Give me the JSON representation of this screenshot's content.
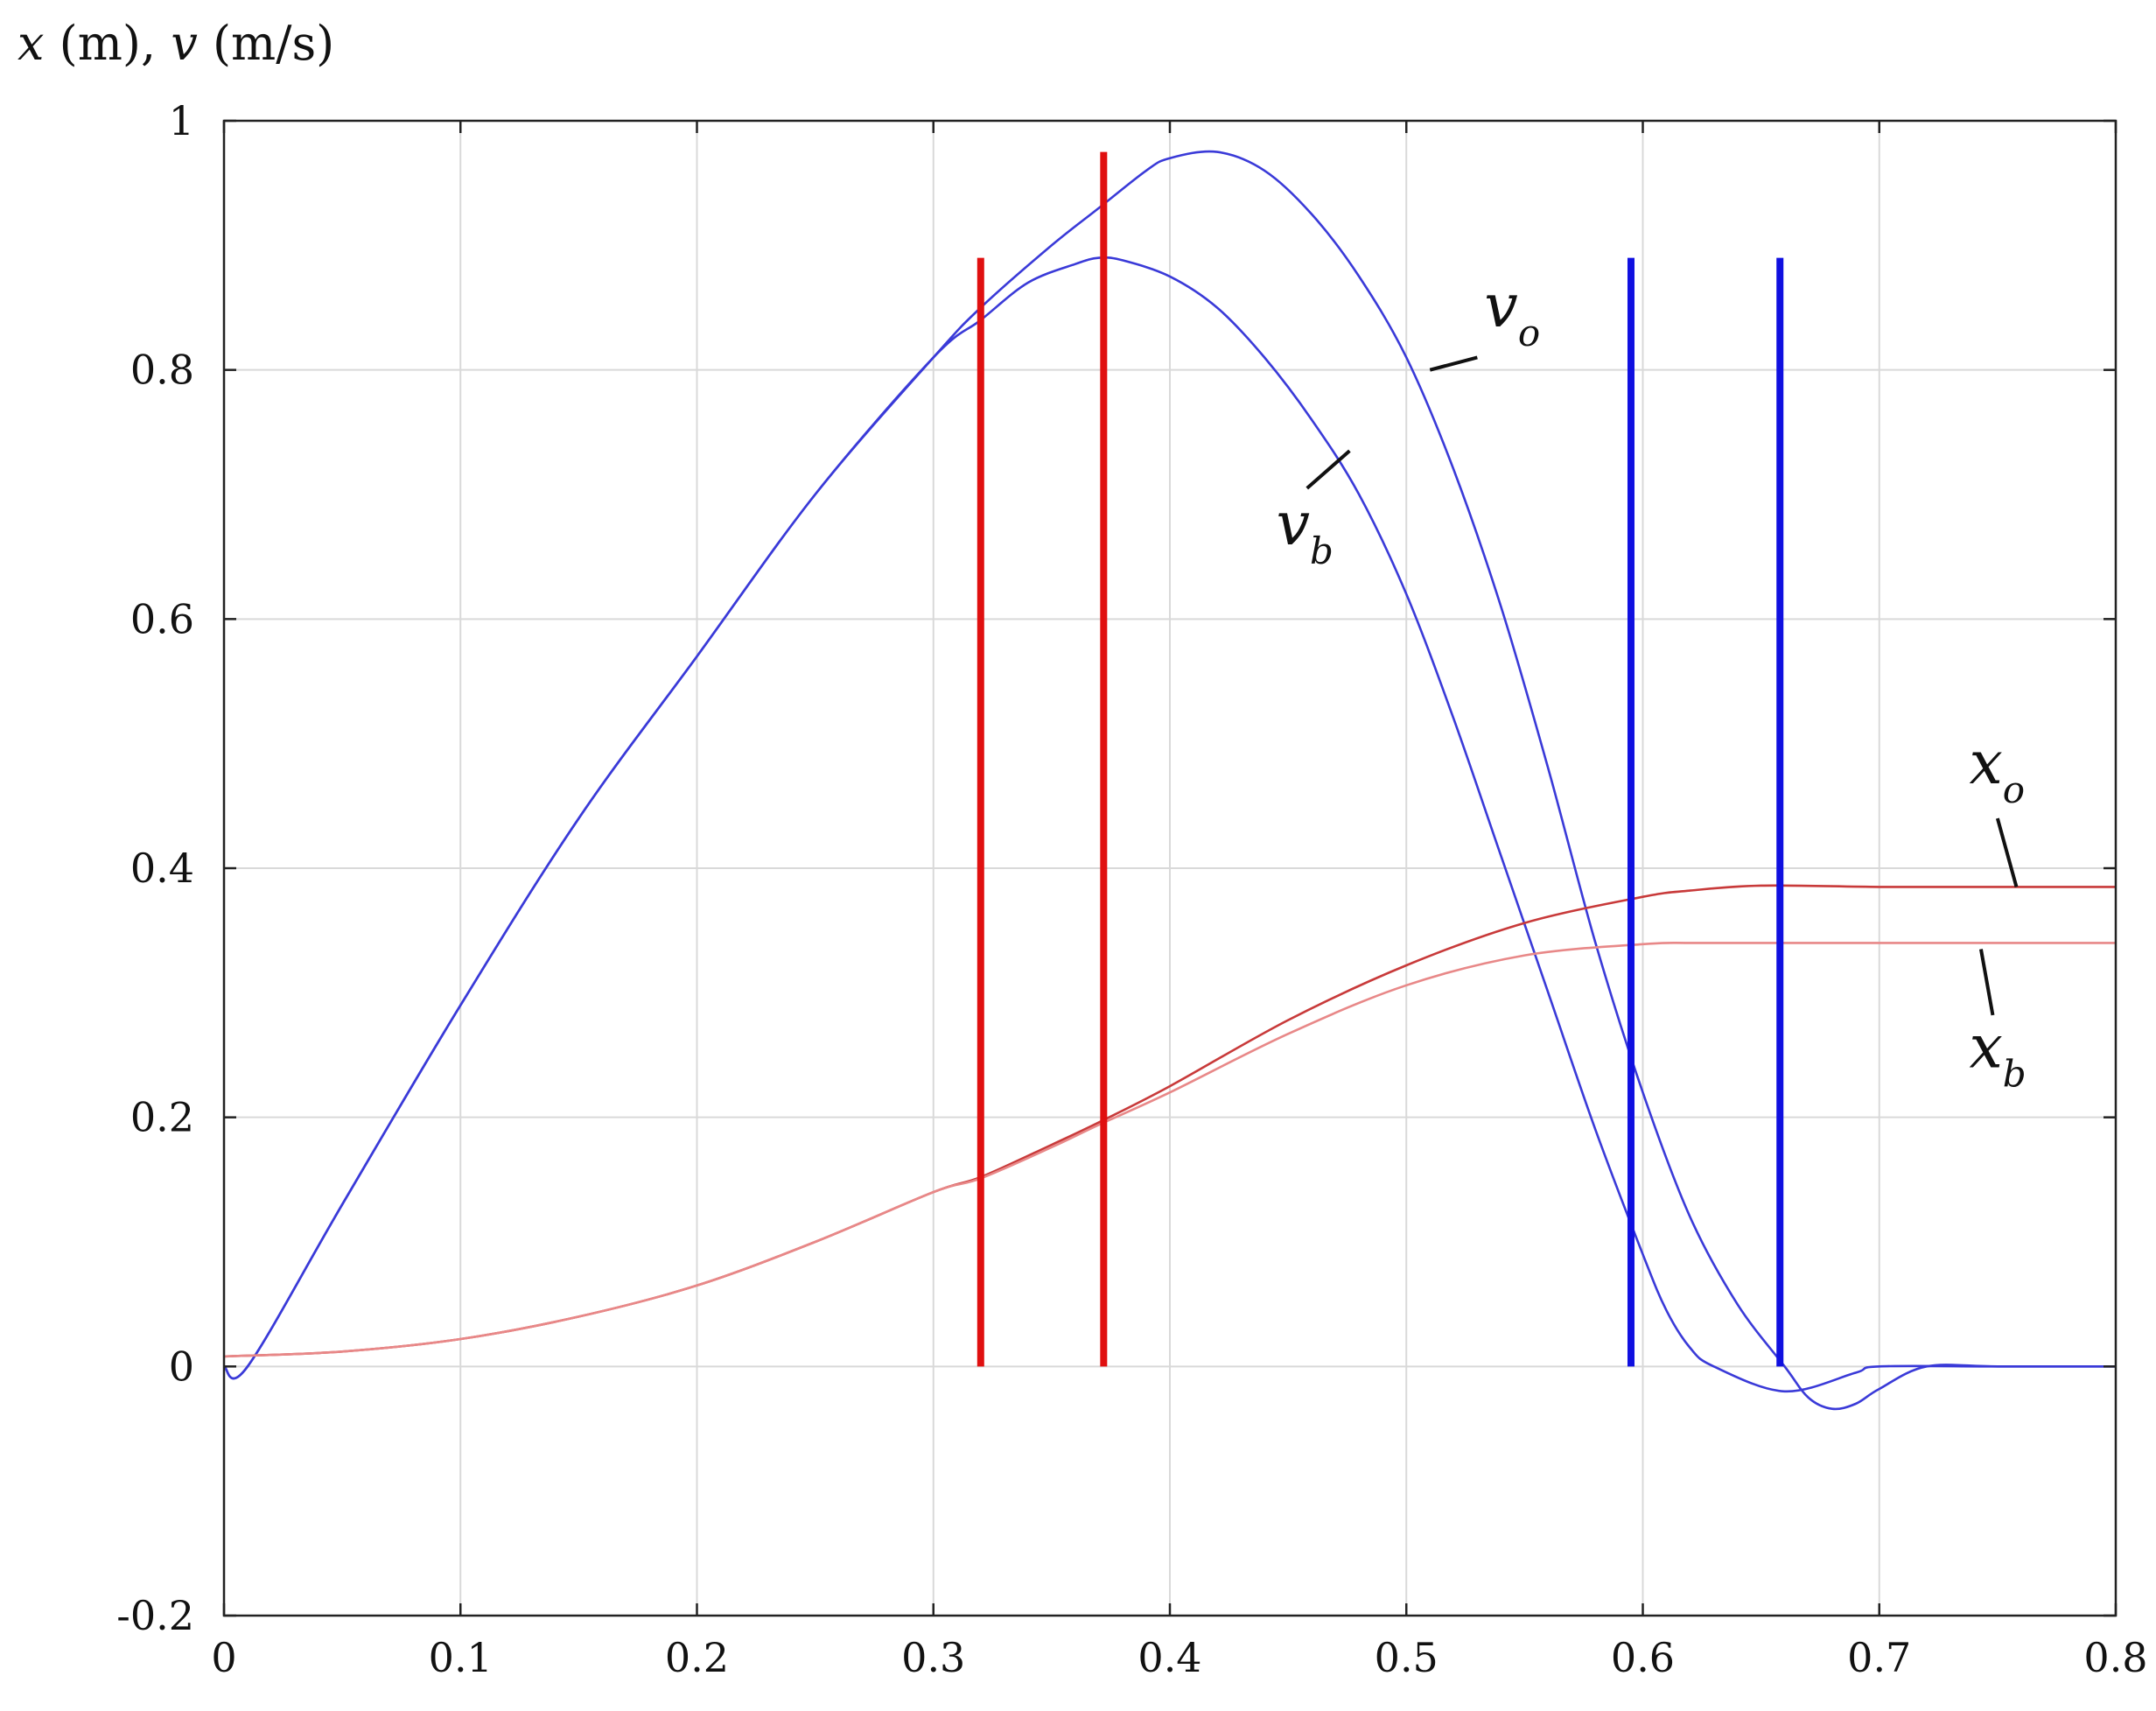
{
  "chart_data": {
    "type": "line",
    "title": "",
    "ylabel": {
      "x": "x",
      "x_unit": " (m), ",
      "v": "v",
      "v_unit": " (m/s)"
    },
    "xlabel": "",
    "xlim": [
      0,
      0.8
    ],
    "ylim": [
      -0.2,
      1.0
    ],
    "grid": true,
    "xticks": [
      0,
      0.1,
      0.2,
      0.3,
      0.4,
      0.5,
      0.6,
      0.7,
      0.8
    ],
    "xtick_labels": [
      "0",
      "0.1",
      "0.2",
      "0.3",
      "0.4",
      "0.5",
      "0.6",
      "0.7",
      "0.8"
    ],
    "yticks": [
      -0.2,
      0,
      0.2,
      0.4,
      0.6,
      0.8,
      1.0
    ],
    "ytick_labels": [
      "-0.2",
      "0",
      "0.2",
      "0.4",
      "0.6",
      "0.8",
      "1"
    ],
    "colors": {
      "velocity": "#3a3ad8",
      "position_o": "#c83a3a",
      "position_b": "#e88888",
      "red_marker": "#e01010",
      "blue_marker": "#1010e0"
    },
    "series": [
      {
        "name": "v_o",
        "color": "#3a3ad8",
        "x": [
          0,
          0.01,
          0.05,
          0.1,
          0.15,
          0.2,
          0.25,
          0.3,
          0.32,
          0.35,
          0.37,
          0.39,
          0.4,
          0.42,
          0.44,
          0.46,
          0.48,
          0.5,
          0.52,
          0.54,
          0.56,
          0.58,
          0.6,
          0.62,
          0.64,
          0.66,
          0.67,
          0.68,
          0.69,
          0.7,
          0.72,
          0.75,
          0.8
        ],
        "y": [
          0,
          0,
          0.13,
          0.29,
          0.44,
          0.57,
          0.7,
          0.81,
          0.85,
          0.9,
          0.93,
          0.96,
          0.97,
          0.975,
          0.96,
          0.925,
          0.875,
          0.81,
          0.72,
          0.61,
          0.48,
          0.34,
          0.22,
          0.12,
          0.05,
          0.0,
          -0.025,
          -0.034,
          -0.03,
          -0.018,
          0,
          0,
          0
        ]
      },
      {
        "name": "v_b",
        "color": "#3a3ad8",
        "x": [
          0,
          0.01,
          0.05,
          0.1,
          0.15,
          0.2,
          0.25,
          0.3,
          0.32,
          0.34,
          0.36,
          0.37,
          0.38,
          0.4,
          0.42,
          0.44,
          0.46,
          0.48,
          0.5,
          0.52,
          0.54,
          0.56,
          0.58,
          0.6,
          0.61,
          0.62,
          0.63,
          0.66,
          0.69,
          0.7,
          0.75,
          0.8
        ],
        "y": [
          0,
          0,
          0.13,
          0.29,
          0.44,
          0.57,
          0.7,
          0.81,
          0.84,
          0.87,
          0.885,
          0.89,
          0.888,
          0.875,
          0.85,
          0.81,
          0.76,
          0.7,
          0.62,
          0.52,
          0.41,
          0.3,
          0.19,
          0.09,
          0.045,
          0.015,
          0.0,
          -0.02,
          -0.005,
          0,
          0,
          0
        ]
      },
      {
        "name": "x_o",
        "color": "#c83a3a",
        "x": [
          0,
          0.05,
          0.1,
          0.15,
          0.2,
          0.25,
          0.3,
          0.32,
          0.35,
          0.37,
          0.4,
          0.45,
          0.5,
          0.55,
          0.6,
          0.62,
          0.65,
          0.7,
          0.75,
          0.8
        ],
        "y": [
          0.008,
          0.012,
          0.022,
          0.04,
          0.065,
          0.1,
          0.14,
          0.152,
          0.178,
          0.196,
          0.225,
          0.278,
          0.322,
          0.356,
          0.377,
          0.382,
          0.386,
          0.385,
          0.385,
          0.385
        ]
      },
      {
        "name": "x_b",
        "color": "#e88888",
        "x": [
          0,
          0.05,
          0.1,
          0.15,
          0.2,
          0.25,
          0.3,
          0.32,
          0.35,
          0.37,
          0.4,
          0.45,
          0.5,
          0.55,
          0.6,
          0.62,
          0.65,
          0.7,
          0.75,
          0.8
        ],
        "y": [
          0.008,
          0.012,
          0.022,
          0.04,
          0.065,
          0.1,
          0.14,
          0.151,
          0.176,
          0.194,
          0.22,
          0.267,
          0.306,
          0.33,
          0.339,
          0.34,
          0.34,
          0.34,
          0.34,
          0.34
        ]
      }
    ],
    "markers": [
      {
        "name": "red-marker-1",
        "x": 0.32,
        "y0": 0,
        "y1": 0.89,
        "color": "#e01010"
      },
      {
        "name": "red-marker-2",
        "x": 0.372,
        "y0": 0,
        "y1": 0.975,
        "color": "#e01010"
      },
      {
        "name": "blue-marker-1",
        "x": 0.595,
        "y0": 0,
        "y1": 0.89,
        "color": "#1010e0"
      },
      {
        "name": "blue-marker-2",
        "x": 0.658,
        "y0": 0,
        "y1": 0.89,
        "color": "#1010e0"
      }
    ],
    "annotations": [
      {
        "name": "label-v-o",
        "main": "v",
        "sub": "o",
        "text_x": 0.533,
        "text_y": 0.835,
        "line": [
          [
            0.53,
            0.81
          ],
          [
            0.51,
            0.8
          ]
        ]
      },
      {
        "name": "label-v-b",
        "main": "v",
        "sub": "b",
        "text_x": 0.445,
        "text_y": 0.66,
        "line": [
          [
            0.458,
            0.705
          ],
          [
            0.476,
            0.735
          ]
        ]
      },
      {
        "name": "label-x-o",
        "main": "x",
        "sub": "o",
        "text_x": 0.738,
        "text_y": 0.468,
        "line": [
          [
            0.75,
            0.44
          ],
          [
            0.758,
            0.385
          ]
        ]
      },
      {
        "name": "label-x-b",
        "main": "x",
        "sub": "b",
        "text_x": 0.738,
        "text_y": 0.24,
        "line": [
          [
            0.748,
            0.282
          ],
          [
            0.743,
            0.335
          ]
        ]
      }
    ]
  }
}
